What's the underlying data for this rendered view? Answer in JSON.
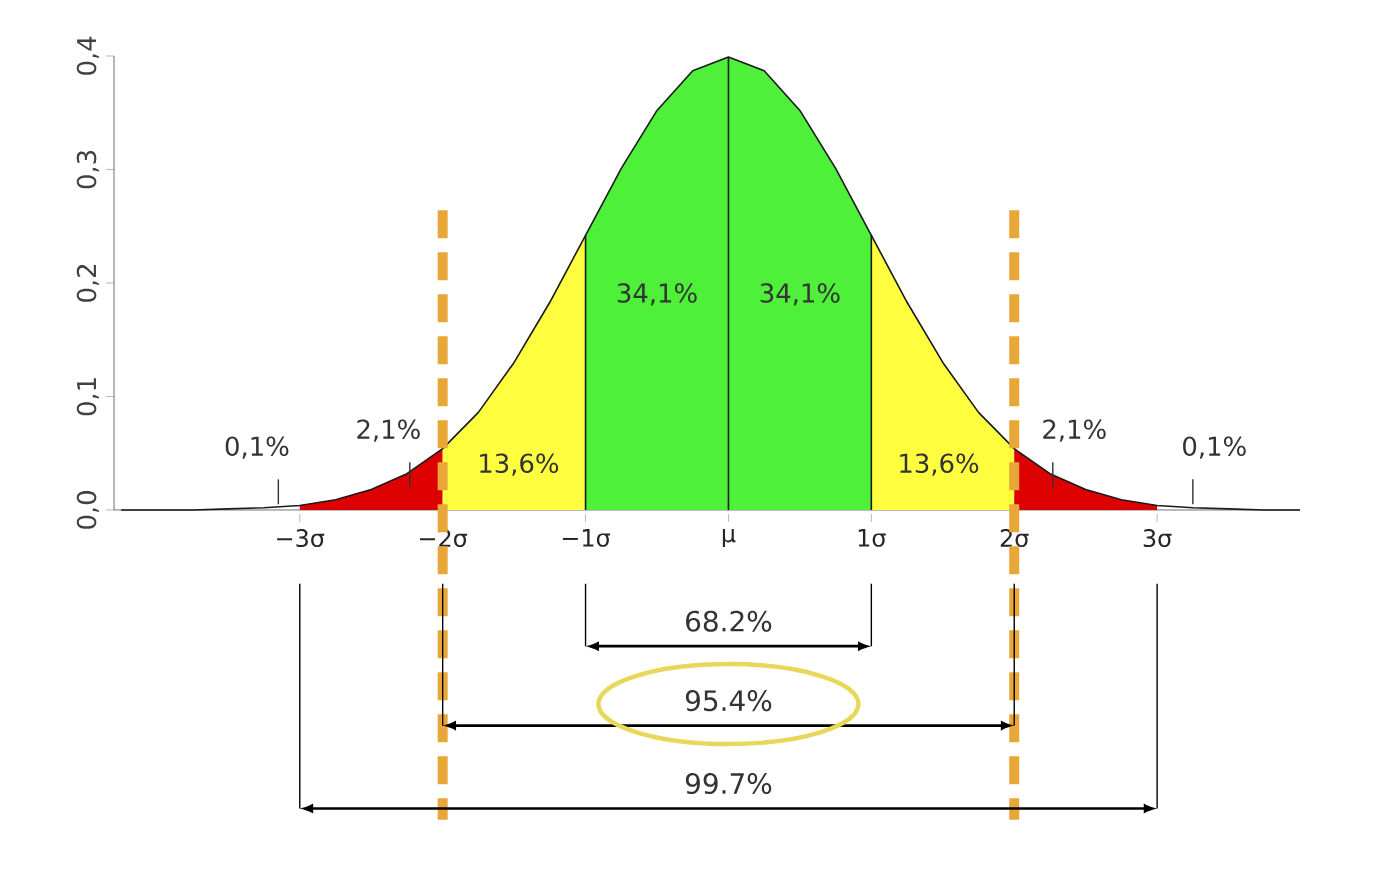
{
  "chart_data": {
    "type": "area",
    "x": [
      -4.25,
      -4,
      -3.75,
      -3.5,
      -3.25,
      -3,
      -2.75,
      -2.5,
      -2.25,
      -2,
      -1.75,
      -1.5,
      -1.25,
      -1,
      -0.75,
      -0.5,
      -0.25,
      0,
      0.25,
      0.5,
      0.75,
      1,
      1.25,
      1.5,
      1.75,
      2,
      2.25,
      2.5,
      2.75,
      3,
      3.25,
      3.5,
      3.75,
      4
    ],
    "series": [
      {
        "color": "#dd0000",
        "x": [
          -3,
          -2.75,
          -2.5,
          -2.25,
          -2
        ],
        "values": [
          0.004,
          0.009,
          0.018,
          0.032,
          0.054
        ]
      },
      {
        "color": "#ffff40",
        "x": [
          -2,
          -1.75,
          -1.5,
          -1.25,
          -1
        ],
        "values": [
          0.054,
          0.086,
          0.13,
          0.183,
          0.242
        ]
      },
      {
        "color": "#4ef03a",
        "x": [
          -1,
          -0.75,
          -0.5,
          -0.25,
          0,
          0.25,
          0.5,
          0.75,
          1
        ],
        "values": [
          0.242,
          0.301,
          0.352,
          0.387,
          0.399,
          0.387,
          0.352,
          0.301,
          0.242
        ]
      },
      {
        "color": "#ffff40",
        "x": [
          1,
          1.25,
          1.5,
          1.75,
          2
        ],
        "values": [
          0.242,
          0.183,
          0.13,
          0.086,
          0.054
        ]
      },
      {
        "color": "#dd0000",
        "x": [
          2,
          2.25,
          2.5,
          2.75,
          3
        ],
        "values": [
          0.054,
          0.032,
          0.018,
          0.009,
          0.004
        ]
      },
      {
        "type": "line",
        "color": "#1a1a1a",
        "values": [
          0.0,
          0.0,
          0.0,
          0.001,
          0.002,
          0.004,
          0.009,
          0.018,
          0.032,
          0.054,
          0.086,
          0.13,
          0.183,
          0.242,
          0.301,
          0.352,
          0.387,
          0.399,
          0.387,
          0.352,
          0.301,
          0.242,
          0.183,
          0.13,
          0.086,
          0.054,
          0.032,
          0.018,
          0.009,
          0.004,
          0.002,
          0.001,
          0.0,
          0.0
        ]
      },
      {
        "type": "line",
        "color": "#1a1a1a",
        "x": [
          -1,
          -1
        ],
        "values": [
          0,
          0.242
        ]
      },
      {
        "type": "line",
        "color": "#1a1a1a",
        "x": [
          0,
          0
        ],
        "values": [
          0,
          0.399
        ]
      },
      {
        "type": "line",
        "color": "#1a1a1a",
        "x": [
          1,
          1
        ],
        "values": [
          0,
          0.242
        ]
      }
    ],
    "xlim": [
      -4.3,
      4.0
    ],
    "ylim": [
      0,
      0.4
    ],
    "xticks": [
      {
        "value": -3,
        "label": "−3σ"
      },
      {
        "value": -2,
        "label": "−2σ"
      },
      {
        "value": -1,
        "label": "−1σ"
      },
      {
        "value": 0,
        "label": "μ"
      },
      {
        "value": 1,
        "label": "1σ"
      },
      {
        "value": 2,
        "label": "2σ"
      },
      {
        "value": 3,
        "label": "3σ"
      }
    ],
    "yticks": [
      {
        "value": 0,
        "label": "0,0"
      },
      {
        "value": 0.1,
        "label": "0,1"
      },
      {
        "value": 0.2,
        "label": "0,2"
      },
      {
        "value": 0.3,
        "label": "0,3"
      },
      {
        "value": 0.4,
        "label": "0,4"
      }
    ],
    "ref_lines": [
      {
        "axis": "x",
        "value": -2,
        "color": "#e8a838",
        "line_style": "dashed"
      },
      {
        "axis": "x",
        "value": 2,
        "color": "#e8a838",
        "line_style": "dashed"
      }
    ],
    "annotations": [
      "34,1%",
      "34,1%",
      "13,6%",
      "13,6%",
      "2,1%",
      "2,1%",
      "0,1%",
      "0,1%",
      "68.2%",
      "95.4%",
      "99.7%"
    ],
    "grid": false
  }
}
